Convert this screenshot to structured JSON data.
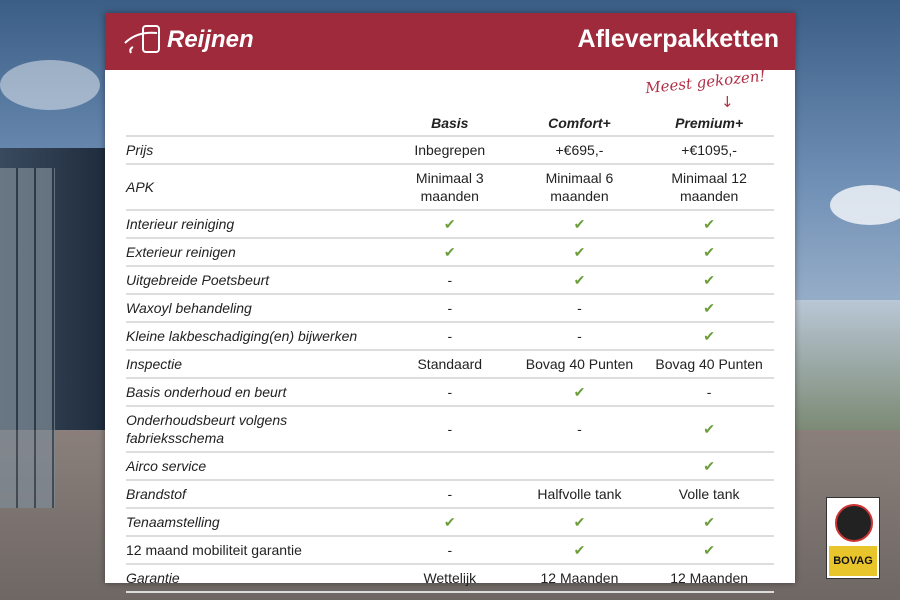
{
  "header": {
    "brand": "Reijnen",
    "title": "Afleverpakketten"
  },
  "annotation": "Meest gekozen!",
  "columns": [
    "Basis",
    "Comfort+",
    "Premium+"
  ],
  "rows": [
    {
      "label": "Prijs",
      "values": [
        "Inbegrepen",
        "+€695,-",
        "+€1095,-"
      ]
    },
    {
      "label": "APK",
      "values": [
        "Minimaal 3 maanden",
        "Minimaal 6 maanden",
        "Minimaal 12 maanden"
      ]
    },
    {
      "label": "Interieur reiniging",
      "values": [
        "✔",
        "✔",
        "✔"
      ]
    },
    {
      "label": "Exterieur reinigen",
      "values": [
        "✔",
        "✔",
        "✔"
      ]
    },
    {
      "label": "Uitgebreide Poetsbeurt",
      "values": [
        "-",
        "✔",
        "✔"
      ]
    },
    {
      "label": "Waxoyl behandeling",
      "values": [
        "-",
        "-",
        "✔"
      ]
    },
    {
      "label": "Kleine lakbeschadiging(en) bijwerken",
      "values": [
        "-",
        "-",
        "✔"
      ]
    },
    {
      "label": "Inspectie",
      "values": [
        "Standaard",
        "Bovag 40 Punten",
        "Bovag 40 Punten"
      ]
    },
    {
      "label": "Basis onderhoud en beurt",
      "values": [
        "-",
        "✔",
        "-"
      ]
    },
    {
      "label": "Onderhoudsbeurt volgens fabrieksschema",
      "values": [
        "-",
        "-",
        "✔"
      ]
    },
    {
      "label": "Airco service",
      "values": [
        "",
        "",
        "✔"
      ]
    },
    {
      "label": "Brandstof",
      "values": [
        "-",
        "Halfvolle tank",
        "Volle tank"
      ]
    },
    {
      "label": "Tenaamstelling",
      "values": [
        "✔",
        "✔",
        "✔"
      ]
    },
    {
      "label": "12 maand mobiliteit garantie",
      "values": [
        "-",
        "✔",
        "✔"
      ]
    },
    {
      "label": "Garantie",
      "values": [
        "Wettelijk",
        "12 Maanden",
        "12 Maanden"
      ]
    }
  ],
  "badge": "BOVAG",
  "colors": {
    "brand": "#9e2a3c",
    "check": "#6b9e3a"
  }
}
